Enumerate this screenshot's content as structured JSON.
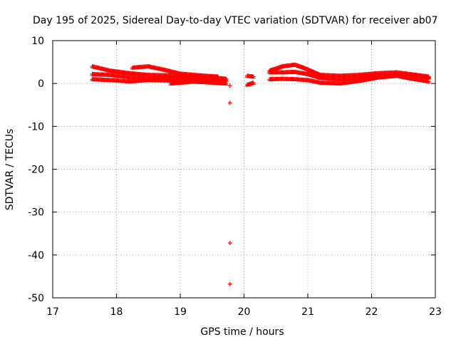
{
  "chart_data": {
    "type": "scatter",
    "title": "Day 195 of 2025, Sidereal Day-to-day VTEC variation (SDTVAR) for receiver ab07",
    "xlabel": "GPS time / hours",
    "ylabel": "SDTVAR / TECUs",
    "xlim": [
      17,
      23
    ],
    "ylim": [
      -50,
      10
    ],
    "x_ticks": [
      "17",
      "18",
      "19",
      "20",
      "21",
      "22",
      "23"
    ],
    "y_ticks": [
      "10",
      "0",
      "-10",
      "-20",
      "-30",
      "-40",
      "-50"
    ],
    "grid": true,
    "marker": "+",
    "color": "#ff0000",
    "bands": [
      {
        "x": [
          17.62,
          17.9,
          18.2,
          18.5,
          18.8,
          19.1,
          19.4,
          19.72
        ],
        "y": [
          4.0,
          3.0,
          2.4,
          2.0,
          1.9,
          1.8,
          1.5,
          1.1
        ]
      },
      {
        "x": [
          17.62,
          17.9,
          18.2,
          18.5,
          18.8,
          19.1,
          19.4,
          19.72
        ],
        "y": [
          2.2,
          2.0,
          1.5,
          1.2,
          1.4,
          1.2,
          1.0,
          0.8
        ]
      },
      {
        "x": [
          17.62,
          17.9,
          18.2,
          18.5,
          18.8,
          19.1,
          19.4,
          19.72
        ],
        "y": [
          1.0,
          0.8,
          0.5,
          0.8,
          0.7,
          0.5,
          0.3,
          0.0
        ]
      },
      {
        "x": [
          18.25,
          18.5,
          18.75,
          19.0,
          19.3,
          19.6
        ],
        "y": [
          3.7,
          4.0,
          3.2,
          2.3,
          1.9,
          1.6
        ]
      },
      {
        "x": [
          18.85,
          19.1,
          19.4,
          19.7
        ],
        "y": [
          0.0,
          0.3,
          0.8,
          0.3
        ]
      },
      {
        "x": [
          20.05,
          20.15
        ],
        "y": [
          1.8,
          1.6
        ]
      },
      {
        "x": [
          20.05,
          20.15
        ],
        "y": [
          -0.3,
          0.2
        ]
      },
      {
        "x": [
          20.4,
          20.6,
          20.8,
          20.95,
          21.2,
          21.5,
          21.8,
          22.1,
          22.4,
          22.6,
          22.9
        ],
        "y": [
          3.0,
          4.0,
          4.4,
          3.6,
          2.0,
          1.8,
          2.0,
          2.4,
          2.6,
          2.2,
          1.6
        ]
      },
      {
        "x": [
          20.4,
          20.6,
          20.8,
          21.0,
          21.2,
          21.5,
          21.8,
          22.1,
          22.4,
          22.6,
          22.9
        ],
        "y": [
          2.6,
          2.6,
          2.7,
          2.2,
          1.3,
          1.0,
          1.3,
          1.8,
          2.2,
          2.0,
          1.4
        ]
      },
      {
        "x": [
          20.4,
          20.6,
          20.8,
          21.0,
          21.2,
          21.5,
          21.8,
          22.1,
          22.4,
          22.6,
          22.9
        ],
        "y": [
          1.0,
          1.1,
          1.0,
          0.8,
          0.2,
          0.0,
          0.6,
          1.4,
          1.8,
          1.2,
          0.5
        ]
      }
    ],
    "points": [
      {
        "x": 19.78,
        "y": -0.5
      },
      {
        "x": 19.78,
        "y": -4.5
      },
      {
        "x": 19.78,
        "y": -37.2
      },
      {
        "x": 19.78,
        "y": -46.8
      }
    ]
  }
}
